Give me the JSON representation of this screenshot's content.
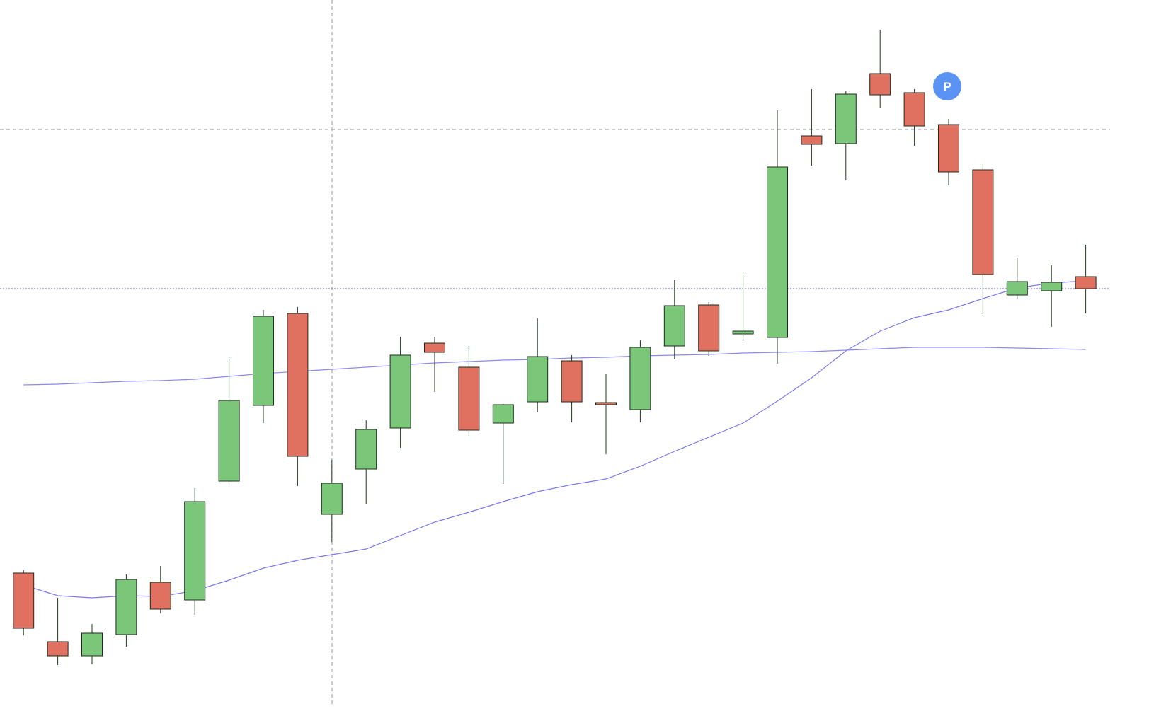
{
  "chart_data": {
    "type": "candlestick",
    "open": [
      219,
      122,
      102,
      132,
      206,
      181,
      349,
      456,
      586,
      302,
      366,
      424,
      544,
      510,
      431,
      461,
      519,
      460,
      450,
      540,
      598,
      557,
      552,
      837,
      826,
      925,
      898,
      853,
      789,
      612,
      618,
      638
    ],
    "high": [
      223,
      184,
      147,
      217,
      229,
      339,
      524,
      591,
      595,
      379,
      435,
      553,
      553,
      540,
      458,
      579,
      527,
      501,
      548,
      633,
      602,
      641,
      873,
      903,
      900,
      987,
      903,
      861,
      797,
      665,
      654,
      683
    ],
    "low": [
      131,
      89,
      90,
      115,
      162,
      160,
      348,
      431,
      342,
      263,
      317,
      396,
      475,
      413,
      345,
      446,
      432,
      387,
      432,
      521,
      526,
      547,
      515,
      795,
      774,
      877,
      823,
      767,
      585,
      607,
      567,
      586
    ],
    "close": [
      141,
      102,
      134,
      210,
      168,
      320,
      463,
      582,
      384,
      346,
      422,
      527,
      531,
      421,
      457,
      525,
      461,
      457,
      538,
      597,
      533,
      561,
      793,
      825,
      896,
      895,
      851,
      786,
      641,
      631,
      630,
      621
    ],
    "up_color": "#7ac77a",
    "down_color": "#e07060",
    "series": [
      {
        "color": "#7b7bf0",
        "values": [
          202,
          187,
          184,
          187,
          186,
          194,
          209,
          226,
          237,
          245,
          253,
          272,
          291,
          305,
          320,
          334,
          344,
          352,
          370,
          391,
          411,
          431,
          462,
          495,
          533,
          561,
          580,
          591,
          607,
          622,
          629,
          632
        ]
      },
      {
        "color": "#8a8af2",
        "values": [
          485,
          486,
          488,
          490,
          491,
          493,
          497,
          501,
          504,
          507,
          510,
          513,
          516,
          518,
          520,
          521,
          523,
          524,
          526,
          527,
          528,
          530,
          531,
          532,
          534,
          536,
          538,
          538,
          538,
          537,
          536,
          535
        ]
      }
    ],
    "ylim": [
      0,
      1029
    ],
    "marker": {
      "label": "P",
      "color": "#5b93f5"
    }
  }
}
